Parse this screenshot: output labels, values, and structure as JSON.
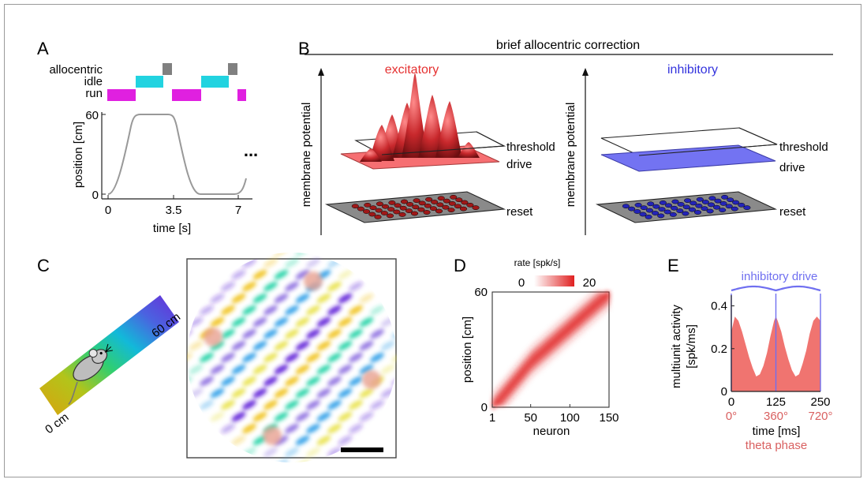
{
  "panel_labels": [
    "A",
    "B",
    "C",
    "D",
    "E"
  ],
  "panel_a": {
    "row_labels": [
      "allocentric",
      "idle",
      "run"
    ],
    "y_label": "position [cm]",
    "x_label": "time [s]",
    "y_ticks": [
      "60",
      "0"
    ],
    "x_ticks": [
      "0",
      "3.5",
      "7"
    ],
    "ellipsis": "...",
    "colors": {
      "allocentric": "#808080",
      "idle": "#22d3e0",
      "run": "#e020e0",
      "trace": "#999999"
    }
  },
  "panel_b": {
    "title": "brief allocentric correction",
    "y_label": "membrane potential",
    "excitatory": {
      "title": "excitatory",
      "color": "#e53030",
      "labels": [
        "threshold",
        "drive",
        "reset"
      ]
    },
    "inhibitory": {
      "title": "inhibitory",
      "color": "#3333dd",
      "labels": [
        "threshold",
        "drive",
        "reset"
      ]
    }
  },
  "panel_c": {
    "track_labels": [
      "0 cm",
      "60 cm"
    ],
    "icon": "mouse-icon"
  },
  "chart_data": [
    {
      "panel": "D",
      "type": "heatmap",
      "xlabel": "neuron",
      "ylabel": "position [cm]",
      "x_ticks": [
        "1",
        "50",
        "100",
        "150"
      ],
      "y_ticks": [
        "0",
        "60"
      ],
      "xlim": [
        1,
        150
      ],
      "ylim": [
        0,
        60
      ],
      "colorbar": {
        "label": "rate [spk/s]",
        "min_label": "0",
        "max_label": "20",
        "min": 0,
        "max": 20
      },
      "peak_position_by_neuron": [
        {
          "neuron": 1,
          "position": 0
        },
        {
          "neuron": 50,
          "position": 24
        },
        {
          "neuron": 100,
          "position": 42
        },
        {
          "neuron": 150,
          "position": 60
        }
      ]
    },
    {
      "panel": "E",
      "type": "area",
      "xlabel": "time [ms]",
      "x_ticks": [
        "0",
        "125",
        "250"
      ],
      "phase_label": "theta phase",
      "phase_ticks": [
        "0°",
        "360°",
        "720°"
      ],
      "ylabel": "multiunit activity [spk/ms]",
      "y_ticks": [
        "0",
        "0.2",
        "0.4"
      ],
      "ylim": [
        0,
        0.45
      ],
      "xlim": [
        0,
        250
      ],
      "drive_label": "inhibitory drive",
      "x": [
        0,
        10,
        20,
        30,
        40,
        50,
        60,
        70,
        80,
        90,
        100,
        110,
        120,
        125,
        130,
        140,
        150,
        160,
        170,
        180,
        190,
        200,
        210,
        220,
        230,
        240,
        250
      ],
      "y": [
        0.28,
        0.35,
        0.33,
        0.28,
        0.22,
        0.16,
        0.11,
        0.07,
        0.08,
        0.12,
        0.18,
        0.26,
        0.33,
        0.35,
        0.33,
        0.28,
        0.21,
        0.15,
        0.1,
        0.07,
        0.08,
        0.13,
        0.19,
        0.27,
        0.33,
        0.35,
        0.33
      ],
      "colors": {
        "area": "#f07470",
        "drive": "#6f6ff0"
      }
    }
  ]
}
